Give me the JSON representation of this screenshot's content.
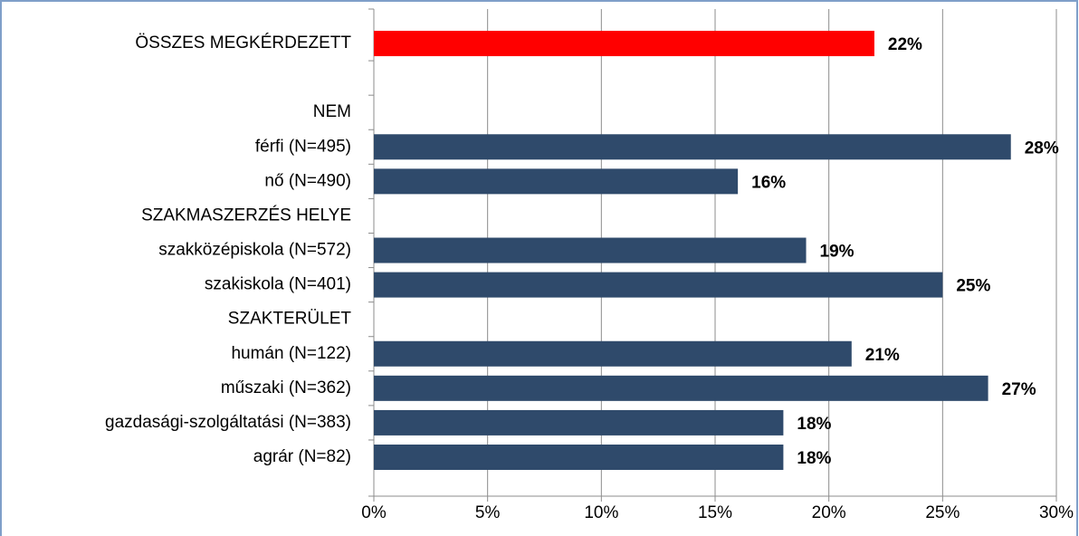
{
  "chart_data": {
    "type": "barh",
    "categories": [
      "ÖSSZES MEGKÉRDEZETT",
      null,
      "NEM",
      "férfi (N=495)",
      "nő (N=490)",
      "SZAKMASZERZÉS HELYE",
      "szakközépiskola (N=572)",
      "szakiskola (N=401)",
      "SZAKTERÜLET",
      "humán (N=122)",
      "műszaki (N=362)",
      "gazdasági-szolgáltatási (N=383)",
      "agrár (N=82)"
    ],
    "values": [
      22,
      null,
      null,
      28,
      16,
      null,
      19,
      25,
      null,
      21,
      27,
      18,
      18
    ],
    "value_labels": [
      "22%",
      null,
      null,
      "28%",
      "16%",
      null,
      "19%",
      "25%",
      null,
      "21%",
      "27%",
      "18%",
      "18%"
    ],
    "colors": [
      "#ff0000",
      null,
      null,
      "#2f4a6b",
      "#2f4a6b",
      null,
      "#2f4a6b",
      "#2f4a6b",
      null,
      "#2f4a6b",
      "#2f4a6b",
      "#2f4a6b",
      "#2f4a6b"
    ],
    "xlim": [
      0,
      30
    ],
    "xticks": [
      {
        "value": 0,
        "label": "0%"
      },
      {
        "value": 5,
        "label": "5%"
      },
      {
        "value": 10,
        "label": "10%"
      },
      {
        "value": 15,
        "label": "15%"
      },
      {
        "value": 20,
        "label": "20%"
      },
      {
        "value": 25,
        "label": "25%"
      },
      {
        "value": 30,
        "label": "30%"
      }
    ],
    "grid": true
  }
}
